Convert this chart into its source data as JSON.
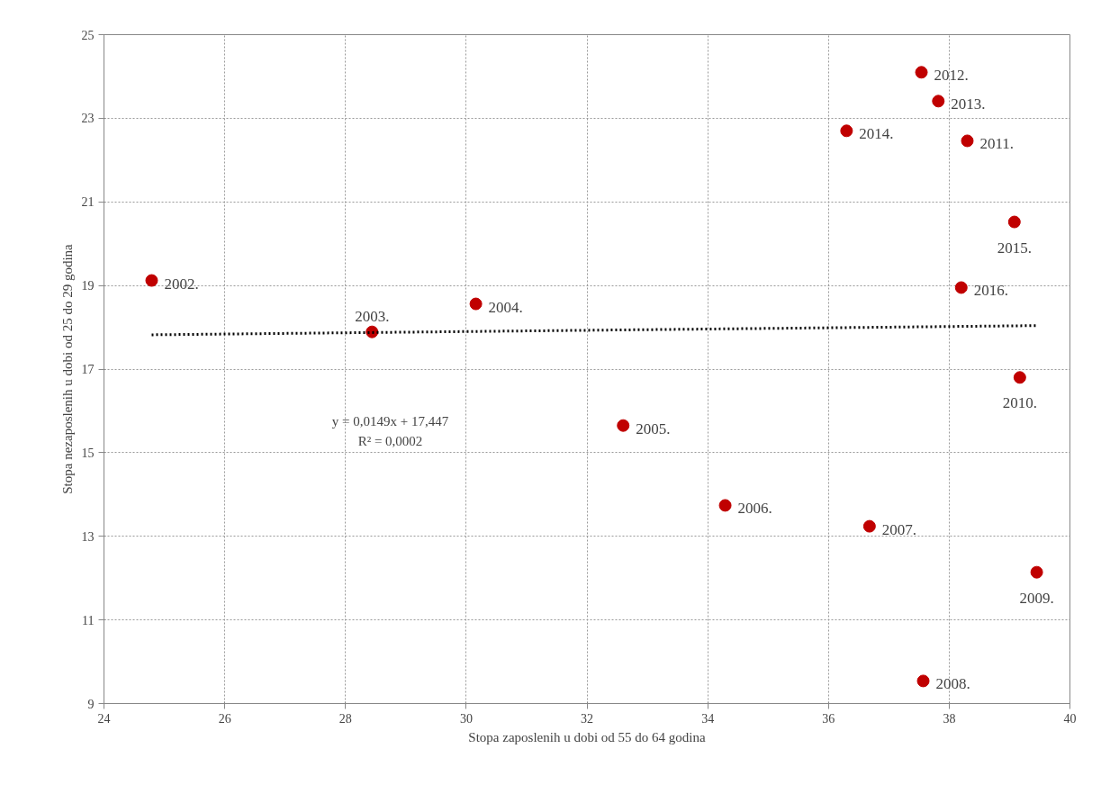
{
  "chart_data": {
    "type": "scatter",
    "xlabel": "Stopa zaposlenih u dobi od 55 do 64 godina",
    "ylabel": "Stopa nezaposlenih u dobi od 25 do 29 godina",
    "xlim": [
      24,
      40
    ],
    "xticks": [
      24,
      26,
      28,
      30,
      32,
      34,
      36,
      38,
      40
    ],
    "ylim": [
      9,
      25
    ],
    "yticks": [
      9,
      11,
      13,
      15,
      17,
      19,
      21,
      23,
      25
    ],
    "grid": true,
    "marker": "circle",
    "series": [
      {
        "color": "#c00000",
        "x": [
          24.79,
          28.44,
          30.16,
          32.6,
          34.29,
          36.68,
          37.57,
          39.45,
          39.17,
          38.3,
          37.54,
          37.82,
          36.3,
          39.08,
          38.2
        ],
        "values": [
          19.12,
          17.89,
          18.56,
          15.65,
          13.74,
          13.24,
          9.54,
          12.14,
          16.8,
          22.46,
          24.1,
          23.41,
          22.7,
          20.52,
          18.95
        ]
      },
      {
        "type": "line",
        "color": "#000000",
        "line_style": "dotted",
        "marker": "none",
        "x": [
          24.79,
          39.45
        ],
        "values": [
          17.82,
          18.04
        ]
      }
    ],
    "annotations": [
      {
        "text": "2002.",
        "x": 24.79,
        "y": 19.12
      },
      {
        "text": "2003.",
        "x": 28.44,
        "y": 17.89
      },
      {
        "text": "2004.",
        "x": 30.16,
        "y": 18.56
      },
      {
        "text": "2005.",
        "x": 32.6,
        "y": 15.65
      },
      {
        "text": "2006.",
        "x": 34.29,
        "y": 13.74
      },
      {
        "text": "2007.",
        "x": 36.68,
        "y": 13.24
      },
      {
        "text": "2008.",
        "x": 37.57,
        "y": 9.54
      },
      {
        "text": "2009.",
        "x": 39.45,
        "y": 12.14
      },
      {
        "text": "2010.",
        "x": 39.17,
        "y": 16.8
      },
      {
        "text": "2011.",
        "x": 38.3,
        "y": 22.46
      },
      {
        "text": "2012.",
        "x": 37.54,
        "y": 24.1
      },
      {
        "text": "2013.",
        "x": 37.82,
        "y": 23.41
      },
      {
        "text": "2014.",
        "x": 36.3,
        "y": 22.7
      },
      {
        "text": "2015.",
        "x": 39.08,
        "y": 20.52
      },
      {
        "text": "2016.",
        "x": 38.2,
        "y": 18.95
      },
      "y = 0,0149x + 17,447",
      "R² = 0,0002"
    ]
  }
}
